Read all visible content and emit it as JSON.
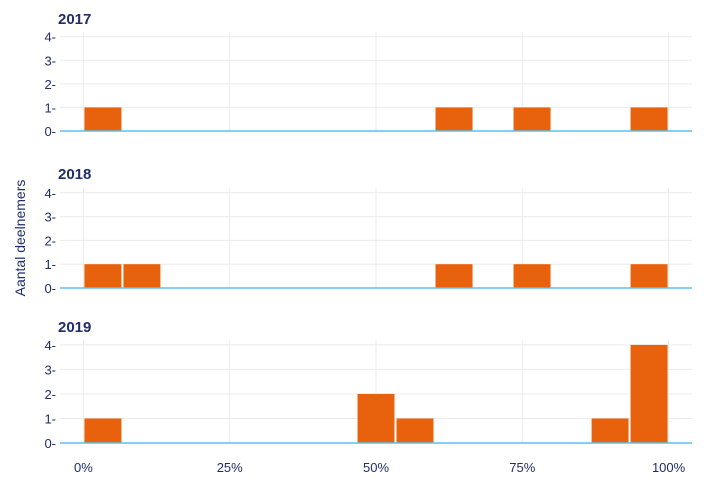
{
  "chart_data": {
    "type": "bar",
    "ylabel": "Aantal deelnemers",
    "x_ticks": [
      "0%",
      "25%",
      "50%",
      "75%",
      "100%"
    ],
    "x_tick_values": [
      0,
      25,
      50,
      75,
      100
    ],
    "xlim": [
      -4,
      104
    ],
    "bin_width": 6.67,
    "ylim": [
      0,
      4.2
    ],
    "y_ticks": [
      0,
      1,
      2,
      3,
      4
    ],
    "bar_color": "#e8620e",
    "baseline_color": "#5bc0e8",
    "grid": true,
    "panels": [
      {
        "title": "2017",
        "bars": [
          {
            "x0": 0,
            "x1": 6.67,
            "value": 1
          },
          {
            "x0": 60,
            "x1": 66.67,
            "value": 1
          },
          {
            "x0": 73.33,
            "x1": 80,
            "value": 1
          },
          {
            "x0": 93.33,
            "x1": 100,
            "value": 1
          }
        ]
      },
      {
        "title": "2018",
        "bars": [
          {
            "x0": 0,
            "x1": 6.67,
            "value": 1
          },
          {
            "x0": 6.67,
            "x1": 13.33,
            "value": 1
          },
          {
            "x0": 60,
            "x1": 66.67,
            "value": 1
          },
          {
            "x0": 73.33,
            "x1": 80,
            "value": 1
          },
          {
            "x0": 93.33,
            "x1": 100,
            "value": 1
          }
        ]
      },
      {
        "title": "2019",
        "bars": [
          {
            "x0": 0,
            "x1": 6.67,
            "value": 1
          },
          {
            "x0": 46.67,
            "x1": 53.33,
            "value": 2
          },
          {
            "x0": 53.33,
            "x1": 60,
            "value": 1
          },
          {
            "x0": 86.67,
            "x1": 93.33,
            "value": 1
          },
          {
            "x0": 93.33,
            "x1": 100,
            "value": 4
          }
        ]
      }
    ]
  }
}
